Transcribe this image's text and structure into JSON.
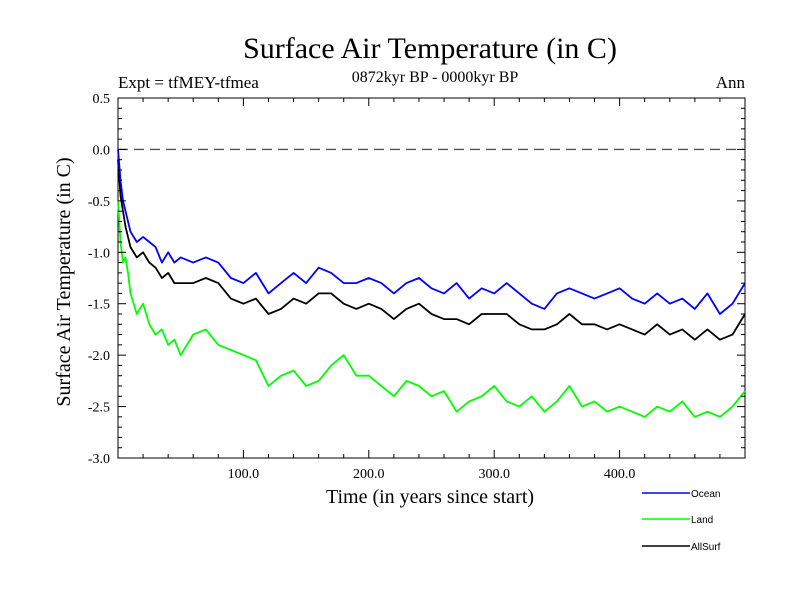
{
  "chart_data": {
    "type": "line",
    "title": "Surface Air Temperature (in C)",
    "expt_label": "Expt = tfMEY-tfmea",
    "period_label": "0872kyr BP - 0000kyr BP",
    "season_label": "Ann",
    "xlabel": "Time (in years since start)",
    "ylabel": "Surface Air Temperature (in C)",
    "xlim": [
      0,
      500
    ],
    "ylim": [
      -3.0,
      0.5
    ],
    "x_ticks": [
      100,
      200,
      300,
      400
    ],
    "x_tick_labels": [
      "100.0",
      "200.0",
      "300.0",
      "400.0"
    ],
    "y_ticks": [
      0.5,
      0.0,
      -0.5,
      -1.0,
      -1.5,
      -2.0,
      -2.5,
      -3.0
    ],
    "y_tick_labels": [
      "0.5",
      "0.0",
      "-0.5",
      "-1.0",
      "-1.5",
      "-2.0",
      "-2.5",
      "-3.0"
    ],
    "reference_line": 0.0,
    "legend_position": "bottom-right",
    "series": [
      {
        "name": "Ocean",
        "color": "#0000ff",
        "x": [
          0,
          2,
          4,
          6,
          8,
          10,
          15,
          20,
          25,
          30,
          35,
          40,
          45,
          50,
          60,
          70,
          80,
          90,
          100,
          110,
          120,
          130,
          140,
          150,
          160,
          170,
          180,
          190,
          200,
          210,
          220,
          230,
          240,
          250,
          260,
          270,
          280,
          290,
          300,
          310,
          320,
          330,
          340,
          350,
          360,
          370,
          380,
          390,
          400,
          410,
          420,
          430,
          440,
          450,
          460,
          470,
          480,
          490,
          500
        ],
        "values": [
          0.0,
          -0.3,
          -0.5,
          -0.6,
          -0.7,
          -0.8,
          -0.9,
          -0.85,
          -0.9,
          -0.95,
          -1.1,
          -1.0,
          -1.1,
          -1.05,
          -1.1,
          -1.05,
          -1.1,
          -1.25,
          -1.3,
          -1.2,
          -1.4,
          -1.3,
          -1.2,
          -1.3,
          -1.15,
          -1.2,
          -1.3,
          -1.3,
          -1.25,
          -1.3,
          -1.4,
          -1.3,
          -1.25,
          -1.35,
          -1.4,
          -1.3,
          -1.45,
          -1.35,
          -1.4,
          -1.3,
          -1.4,
          -1.5,
          -1.55,
          -1.4,
          -1.35,
          -1.4,
          -1.45,
          -1.4,
          -1.35,
          -1.45,
          -1.5,
          -1.4,
          -1.5,
          -1.45,
          -1.55,
          -1.4,
          -1.6,
          -1.5,
          -1.3
        ]
      },
      {
        "name": "Land",
        "color": "#00ff00",
        "x": [
          0,
          2,
          4,
          6,
          8,
          10,
          15,
          20,
          25,
          30,
          35,
          40,
          45,
          50,
          60,
          70,
          80,
          90,
          100,
          110,
          120,
          130,
          140,
          150,
          160,
          170,
          180,
          190,
          200,
          210,
          220,
          230,
          240,
          250,
          260,
          270,
          280,
          290,
          300,
          310,
          320,
          330,
          340,
          350,
          360,
          370,
          380,
          390,
          400,
          410,
          420,
          430,
          440,
          450,
          460,
          470,
          480,
          490,
          500
        ],
        "values": [
          -0.5,
          -0.9,
          -1.1,
          -1.05,
          -1.2,
          -1.4,
          -1.6,
          -1.5,
          -1.7,
          -1.8,
          -1.75,
          -1.9,
          -1.85,
          -2.0,
          -1.8,
          -1.75,
          -1.9,
          -1.95,
          -2.0,
          -2.05,
          -2.3,
          -2.2,
          -2.15,
          -2.3,
          -2.25,
          -2.1,
          -2.0,
          -2.2,
          -2.2,
          -2.3,
          -2.4,
          -2.25,
          -2.3,
          -2.4,
          -2.35,
          -2.55,
          -2.45,
          -2.4,
          -2.3,
          -2.45,
          -2.5,
          -2.4,
          -2.55,
          -2.45,
          -2.3,
          -2.5,
          -2.45,
          -2.55,
          -2.5,
          -2.55,
          -2.6,
          -2.5,
          -2.55,
          -2.45,
          -2.6,
          -2.55,
          -2.6,
          -2.5,
          -2.35
        ]
      },
      {
        "name": "AllSurf",
        "color": "#000000",
        "x": [
          0,
          2,
          4,
          6,
          8,
          10,
          15,
          20,
          25,
          30,
          35,
          40,
          45,
          50,
          60,
          70,
          80,
          90,
          100,
          110,
          120,
          130,
          140,
          150,
          160,
          170,
          180,
          190,
          200,
          210,
          220,
          230,
          240,
          250,
          260,
          270,
          280,
          290,
          300,
          310,
          320,
          330,
          340,
          350,
          360,
          370,
          380,
          390,
          400,
          410,
          420,
          430,
          440,
          450,
          460,
          470,
          480,
          490,
          500
        ],
        "values": [
          -0.1,
          -0.45,
          -0.6,
          -0.75,
          -0.85,
          -0.95,
          -1.05,
          -1.0,
          -1.1,
          -1.15,
          -1.25,
          -1.2,
          -1.3,
          -1.3,
          -1.3,
          -1.25,
          -1.3,
          -1.45,
          -1.5,
          -1.45,
          -1.6,
          -1.55,
          -1.45,
          -1.5,
          -1.4,
          -1.4,
          -1.5,
          -1.55,
          -1.5,
          -1.55,
          -1.65,
          -1.55,
          -1.5,
          -1.6,
          -1.65,
          -1.65,
          -1.7,
          -1.6,
          -1.6,
          -1.6,
          -1.7,
          -1.75,
          -1.75,
          -1.7,
          -1.6,
          -1.7,
          -1.7,
          -1.75,
          -1.7,
          -1.75,
          -1.8,
          -1.7,
          -1.8,
          -1.75,
          -1.85,
          -1.75,
          -1.85,
          -1.8,
          -1.6
        ]
      }
    ]
  }
}
